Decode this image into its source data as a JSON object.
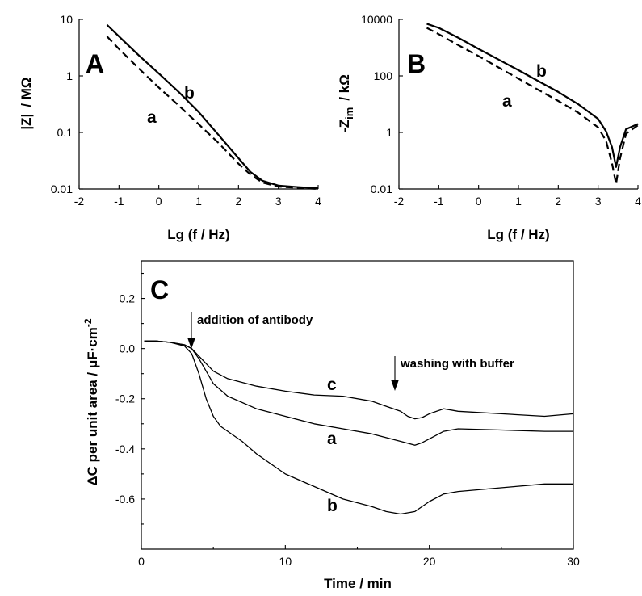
{
  "chart_data": [
    {
      "panel": "A",
      "type": "line",
      "xlabel": "Lg (f / Hz)",
      "ylabel": "|Z| / MΩ",
      "xlim": [
        -2,
        4
      ],
      "ylim": [
        0.01,
        10
      ],
      "yscale": "log",
      "xticks": [
        "-2",
        "-1",
        "0",
        "1",
        "2",
        "3",
        "4"
      ],
      "yticks": [
        "0.01",
        "0.1",
        "1",
        "10"
      ],
      "series": [
        {
          "name": "a",
          "style": "dashed",
          "x": [
            -1.3,
            -1.0,
            -0.5,
            0.0,
            0.5,
            1.0,
            1.5,
            2.0,
            2.3,
            2.6,
            3.0,
            3.5,
            4.0
          ],
          "y": [
            5.0,
            3.0,
            1.35,
            0.62,
            0.3,
            0.14,
            0.065,
            0.028,
            0.018,
            0.013,
            0.011,
            0.0105,
            0.01
          ]
        },
        {
          "name": "b",
          "style": "solid",
          "x": [
            -1.3,
            -1.0,
            -0.5,
            0.0,
            0.5,
            1.0,
            1.5,
            2.0,
            2.3,
            2.6,
            3.0,
            3.5,
            4.0
          ],
          "y": [
            8.0,
            5.0,
            2.3,
            1.1,
            0.52,
            0.23,
            0.09,
            0.035,
            0.02,
            0.014,
            0.0115,
            0.0108,
            0.0103
          ]
        }
      ],
      "annotations": [
        "A",
        "a",
        "b"
      ]
    },
    {
      "panel": "B",
      "type": "line",
      "xlabel": "Lg (f / Hz)",
      "ylabel": "-Z im / kΩ",
      "xlim": [
        -2,
        4
      ],
      "ylim": [
        0.01,
        10000
      ],
      "yscale": "log",
      "xticks": [
        "-2",
        "-1",
        "0",
        "1",
        "2",
        "3",
        "4"
      ],
      "yticks": [
        "0.01",
        "1",
        "100",
        "10000"
      ],
      "series": [
        {
          "name": "a",
          "style": "dashed",
          "x": [
            -1.3,
            -1.0,
            -0.5,
            0.0,
            0.5,
            1.0,
            1.5,
            2.0,
            2.5,
            3.0,
            3.2,
            3.35,
            3.45,
            3.55,
            3.7,
            4.0
          ],
          "y": [
            5000,
            3000,
            1200,
            500,
            200,
            80,
            32,
            13,
            5,
            1.5,
            0.5,
            0.08,
            0.015,
            0.12,
            0.9,
            1.8
          ]
        },
        {
          "name": "b",
          "style": "solid",
          "x": [
            -1.3,
            -1.0,
            -0.5,
            0.0,
            0.5,
            1.0,
            1.5,
            2.0,
            2.5,
            3.0,
            3.2,
            3.35,
            3.45,
            3.55,
            3.7,
            4.0
          ],
          "y": [
            7000,
            5000,
            2200,
            900,
            380,
            160,
            65,
            27,
            10,
            3,
            1.1,
            0.3,
            0.06,
            0.3,
            1.3,
            2.0
          ]
        }
      ],
      "annotations": [
        "B",
        "a",
        "b"
      ]
    },
    {
      "panel": "C",
      "type": "line",
      "xlabel": "Time / min",
      "ylabel": "ΔC per unit area / μF·cm-2",
      "xlim": [
        0,
        30
      ],
      "ylim": [
        -0.8,
        0.35
      ],
      "xticks": [
        "0",
        "10",
        "20",
        "30"
      ],
      "yticks": [
        "0.2",
        "0.0",
        "-0.2",
        "-0.4",
        "-0.6"
      ],
      "series": [
        {
          "name": "c",
          "style": "solid",
          "x": [
            0.2,
            1,
            2,
            3,
            3.5,
            4,
            4.5,
            5,
            6,
            8,
            10,
            12,
            14,
            16,
            17,
            18,
            18.5,
            19,
            19.5,
            20,
            21,
            22,
            25,
            28,
            30
          ],
          "y": [
            0.03,
            0.03,
            0.025,
            0.015,
            0.0,
            -0.03,
            -0.06,
            -0.09,
            -0.12,
            -0.15,
            -0.17,
            -0.185,
            -0.19,
            -0.21,
            -0.23,
            -0.25,
            -0.27,
            -0.28,
            -0.275,
            -0.26,
            -0.24,
            -0.25,
            -0.26,
            -0.27,
            -0.26
          ]
        },
        {
          "name": "a",
          "style": "solid",
          "x": [
            0.2,
            1,
            2,
            3,
            3.5,
            4,
            4.5,
            5,
            6,
            8,
            10,
            12,
            14,
            16,
            17,
            18,
            19,
            19.5,
            20,
            21,
            22,
            25,
            28,
            30
          ],
          "y": [
            0.03,
            0.03,
            0.025,
            0.015,
            0.0,
            -0.04,
            -0.09,
            -0.14,
            -0.19,
            -0.24,
            -0.27,
            -0.3,
            -0.32,
            -0.34,
            -0.355,
            -0.37,
            -0.385,
            -0.375,
            -0.36,
            -0.33,
            -0.32,
            -0.325,
            -0.33,
            -0.33
          ]
        },
        {
          "name": "b",
          "style": "solid",
          "x": [
            0.2,
            1,
            2,
            3,
            3.5,
            4,
            4.5,
            5,
            5.5,
            6,
            7,
            8,
            10,
            12,
            14,
            16,
            17,
            18,
            19,
            20,
            21,
            22,
            24,
            26,
            28,
            30
          ],
          "y": [
            0.03,
            0.03,
            0.025,
            0.01,
            -0.02,
            -0.1,
            -0.2,
            -0.27,
            -0.31,
            -0.33,
            -0.37,
            -0.42,
            -0.5,
            -0.55,
            -0.6,
            -0.63,
            -0.65,
            -0.66,
            -0.65,
            -0.61,
            -0.58,
            -0.57,
            -0.56,
            -0.55,
            -0.54,
            -0.54
          ]
        }
      ],
      "annotations": [
        "C",
        "addition of antibody",
        "washing with buffer",
        "a",
        "b",
        "c"
      ]
    }
  ],
  "panels": {
    "A": {
      "letter": "A",
      "xlabel": "Lg (f / Hz)",
      "ylabel_main": "|Z|",
      "ylabel_unit": "/ MΩ",
      "label_a": "a",
      "label_b": "b"
    },
    "B": {
      "letter": "B",
      "xlabel": "Lg (f / Hz)",
      "ylabel_main": "-Z",
      "ylabel_sub": "im",
      "ylabel_unit": "/ kΩ",
      "label_a": "a",
      "label_b": "b"
    },
    "C": {
      "letter": "C",
      "xlabel": "Time  /  min",
      "ylabel_main": "ΔC per unit area  /  μF·cm",
      "ylabel_sup": "-2",
      "annotation_addition": "addition of antibody",
      "annotation_washing": "washing with buffer",
      "label_a": "a",
      "label_b": "b",
      "label_c": "c"
    }
  }
}
